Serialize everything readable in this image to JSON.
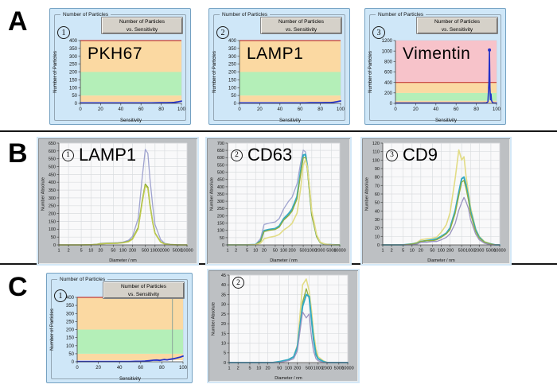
{
  "sections": [
    {
      "label": "A"
    },
    {
      "label": "B"
    },
    {
      "label": "C"
    }
  ],
  "particle_widget": {
    "groupbox_label": "Number of Particles",
    "button_line1": "Number of Particles",
    "button_line2": "vs. Sensitivity",
    "xlabel": "Sensitivity",
    "ylabel": "Number of Particles"
  },
  "colors": {
    "widget_blue": "#cfe7f8",
    "band_orange": "#fbd9a2",
    "band_green": "#b4efb8",
    "band_pink": "#f7c3ca",
    "threshold_red": "#c43c39",
    "trace_blue": "#2331c8",
    "widget_gray": "#bdc0c3"
  },
  "chart_data": [
    {
      "id": "A1",
      "badge": "1",
      "title": "PKH67",
      "type": "line",
      "style": "sensitivity",
      "xscale": "linear",
      "xlabel": "Sensitivity",
      "ylabel": "Number of Particles",
      "xlim": [
        0,
        100
      ],
      "ylim": [
        0,
        400
      ],
      "xticks": [
        0,
        20,
        40,
        60,
        80,
        100
      ],
      "yticks": [
        0,
        50,
        100,
        150,
        200,
        250,
        300,
        350,
        400
      ],
      "bands": [
        {
          "from": 10,
          "to": 50,
          "color": "#fbd9a2"
        },
        {
          "from": 50,
          "to": 200,
          "color": "#b4efb8"
        },
        {
          "from": 200,
          "to": 400,
          "color": "#fbd9a2"
        }
      ],
      "hline": {
        "y": 400,
        "color": "#c43c39"
      },
      "series": [
        {
          "name": "particle-count",
          "color": "#2331c8",
          "width": 1.8,
          "x": [
            0,
            10,
            20,
            30,
            40,
            50,
            60,
            70,
            80,
            85,
            90,
            93,
            96,
            100
          ],
          "y": [
            3,
            3,
            3,
            3,
            3,
            3,
            3,
            3,
            4,
            4,
            5,
            6,
            9,
            14
          ]
        }
      ]
    },
    {
      "id": "A2",
      "badge": "2",
      "title": "LAMP1",
      "type": "line",
      "style": "sensitivity",
      "xscale": "linear",
      "xlabel": "Sensitivity",
      "ylabel": "Number of Particles",
      "xlim": [
        0,
        100
      ],
      "ylim": [
        0,
        400
      ],
      "xticks": [
        0,
        20,
        40,
        60,
        80,
        100
      ],
      "yticks": [
        0,
        50,
        100,
        150,
        200,
        250,
        300,
        350,
        400
      ],
      "bands": [
        {
          "from": 10,
          "to": 50,
          "color": "#fbd9a2"
        },
        {
          "from": 50,
          "to": 200,
          "color": "#b4efb8"
        },
        {
          "from": 200,
          "to": 400,
          "color": "#fbd9a2"
        }
      ],
      "hline": {
        "y": 400,
        "color": "#c43c39"
      },
      "series": [
        {
          "name": "particle-count",
          "color": "#2331c8",
          "width": 1.8,
          "x": [
            0,
            10,
            20,
            30,
            40,
            50,
            60,
            70,
            80,
            85,
            90,
            93,
            96,
            100
          ],
          "y": [
            3,
            3,
            3,
            3,
            3,
            3,
            3,
            4,
            4,
            5,
            5,
            7,
            10,
            15
          ]
        }
      ]
    },
    {
      "id": "A3",
      "badge": "3",
      "title": "Vimentin",
      "type": "line",
      "style": "sensitivity",
      "xscale": "linear",
      "xlabel": "Sensitivity",
      "ylabel": "Number of Particles",
      "xlim": [
        0,
        100
      ],
      "ylim": [
        0,
        1200
      ],
      "xticks": [
        0,
        20,
        40,
        60,
        80,
        100
      ],
      "yticks": [
        0,
        200,
        400,
        600,
        800,
        1000,
        1200
      ],
      "bands": [
        {
          "from": 10,
          "to": 50,
          "color": "#fbd9a2"
        },
        {
          "from": 50,
          "to": 200,
          "color": "#b4efb8"
        },
        {
          "from": 200,
          "to": 400,
          "color": "#fbd9a2"
        },
        {
          "from": 400,
          "to": 1200,
          "color": "#f7c3ca"
        }
      ],
      "hline": {
        "y": 400,
        "color": "#c43c39"
      },
      "marker": {
        "x": 93,
        "y": 1020,
        "color": "#2331c8"
      },
      "series": [
        {
          "name": "particle-count",
          "color": "#2331c8",
          "width": 1.6,
          "x": [
            0,
            10,
            20,
            30,
            40,
            50,
            60,
            70,
            80,
            86,
            90,
            91.5,
            92.5,
            93,
            93.5,
            94,
            94.5,
            95,
            96,
            98,
            100
          ],
          "y": [
            6,
            6,
            6,
            6,
            6,
            6,
            6,
            6,
            7,
            8,
            10,
            30,
            420,
            1020,
            300,
            70,
            180,
            60,
            12,
            7,
            6
          ]
        }
      ]
    },
    {
      "id": "B1",
      "badge": "1",
      "title": "LAMP1",
      "type": "line",
      "style": "diameter",
      "xscale": "log",
      "xlabel": "Diameter / nm",
      "ylabel": "Number Absolute",
      "xlim": [
        1,
        10000
      ],
      "ylim": [
        0,
        650
      ],
      "xticks": [
        1,
        2,
        5,
        10,
        20,
        50,
        100,
        200,
        500,
        1000,
        2000,
        5000,
        10000
      ],
      "yticks": [
        0,
        50,
        100,
        150,
        200,
        250,
        300,
        350,
        400,
        450,
        500,
        550,
        600,
        650
      ],
      "x": [
        1,
        2,
        5,
        10,
        15,
        20,
        30,
        50,
        70,
        100,
        150,
        200,
        300,
        400,
        500,
        600,
        700,
        850,
        1000,
        1500,
        2000,
        3000,
        5000,
        7000,
        10000
      ],
      "series": [
        {
          "name": "sample-lavender",
          "color": "#9fa3cf",
          "width": 1.3,
          "y": [
            0,
            0,
            0,
            1,
            4,
            10,
            12,
            13,
            14,
            18,
            30,
            55,
            170,
            430,
            610,
            585,
            420,
            250,
            130,
            35,
            10,
            3,
            1,
            0,
            0
          ]
        },
        {
          "name": "sample-olive",
          "color": "#8fad3b",
          "width": 1.6,
          "y": [
            0,
            0,
            0,
            1,
            3,
            7,
            9,
            10,
            11,
            14,
            22,
            40,
            110,
            280,
            388,
            368,
            255,
            145,
            75,
            20,
            6,
            2,
            0,
            0,
            0
          ]
        },
        {
          "name": "sample-yellow-green",
          "color": "#c2cc52",
          "width": 1.3,
          "y": [
            0,
            0,
            0,
            1,
            3,
            6,
            8,
            9,
            10,
            13,
            20,
            36,
            102,
            268,
            378,
            360,
            248,
            140,
            72,
            18,
            5,
            1,
            0,
            0,
            0
          ]
        }
      ]
    },
    {
      "id": "B2",
      "badge": "2",
      "title": "CD63",
      "type": "line",
      "style": "diameter",
      "xscale": "log",
      "xlabel": "Diameter / nm",
      "ylabel": "Number Absolute",
      "xlim": [
        1,
        10000
      ],
      "ylim": [
        0,
        700
      ],
      "xticks": [
        1,
        2,
        5,
        10,
        20,
        50,
        100,
        200,
        500,
        1000,
        2000,
        5000,
        10000
      ],
      "yticks": [
        0,
        50,
        100,
        150,
        200,
        250,
        300,
        350,
        400,
        450,
        500,
        550,
        600,
        650,
        700
      ],
      "x": [
        1,
        2,
        5,
        10,
        15,
        20,
        30,
        50,
        70,
        100,
        150,
        200,
        300,
        400,
        500,
        600,
        700,
        850,
        1000,
        1500,
        2000,
        3000,
        5000,
        7000,
        10000
      ],
      "series": [
        {
          "name": "sample-lavender",
          "color": "#9fa3cf",
          "width": 1.3,
          "y": [
            0,
            0,
            0,
            3,
            45,
            140,
            150,
            158,
            182,
            248,
            300,
            328,
            420,
            560,
            652,
            640,
            555,
            375,
            225,
            68,
            20,
            5,
            1,
            0,
            0
          ]
        },
        {
          "name": "sample-teal",
          "color": "#33a9c2",
          "width": 2,
          "y": [
            0,
            0,
            0,
            2,
            28,
            98,
            106,
            112,
            130,
            180,
            215,
            246,
            332,
            502,
            618,
            622,
            538,
            358,
            212,
            60,
            17,
            4,
            1,
            0,
            0
          ]
        },
        {
          "name": "sample-olive",
          "color": "#8fad3b",
          "width": 1.3,
          "y": [
            0,
            0,
            0,
            2,
            25,
            92,
            100,
            106,
            122,
            170,
            202,
            232,
            316,
            482,
            598,
            602,
            518,
            342,
            202,
            55,
            15,
            4,
            1,
            0,
            0
          ]
        },
        {
          "name": "sample-light-yellow",
          "color": "#e2dc85",
          "width": 1.6,
          "y": [
            0,
            0,
            0,
            1,
            12,
            42,
            52,
            60,
            72,
            102,
            126,
            148,
            218,
            382,
            548,
            588,
            538,
            382,
            235,
            70,
            19,
            5,
            1,
            0,
            0
          ]
        }
      ]
    },
    {
      "id": "B3",
      "badge": "3",
      "title": "CD9",
      "type": "line",
      "style": "diameter",
      "xscale": "log",
      "xlabel": "Diameter / nm",
      "ylabel": "Number Absolute",
      "xlim": [
        1,
        10000
      ],
      "ylim": [
        0,
        120
      ],
      "xticks": [
        1,
        2,
        5,
        10,
        20,
        50,
        100,
        200,
        500,
        1000,
        2000,
        5000,
        10000
      ],
      "yticks": [
        0,
        10,
        20,
        30,
        40,
        50,
        60,
        70,
        80,
        90,
        100,
        110,
        120
      ],
      "x": [
        1,
        2,
        5,
        10,
        15,
        20,
        30,
        50,
        70,
        100,
        150,
        200,
        300,
        400,
        500,
        600,
        700,
        850,
        1000,
        1500,
        2000,
        3000,
        5000,
        7000,
        10000
      ],
      "series": [
        {
          "name": "sample-light-yellow",
          "color": "#e2dc85",
          "width": 1.6,
          "y": [
            0,
            0,
            0,
            1,
            3,
            6,
            7,
            8,
            9,
            15,
            24,
            38,
            78,
            112,
            100,
            104,
            82,
            62,
            45,
            19,
            10,
            4,
            1,
            0,
            0
          ]
        },
        {
          "name": "sample-teal",
          "color": "#33a9c2",
          "width": 2,
          "y": [
            0,
            0,
            0,
            1,
            2,
            4,
            5,
            6,
            7,
            10,
            14,
            20,
            40,
            62,
            78,
            80,
            71,
            56,
            40,
            18,
            9,
            3,
            1,
            0,
            0
          ]
        },
        {
          "name": "sample-olive",
          "color": "#8fad3b",
          "width": 1.3,
          "y": [
            0,
            0,
            0,
            1,
            2,
            4,
            5,
            5,
            6,
            9,
            13,
            18,
            37,
            58,
            74,
            76,
            67,
            53,
            37,
            16,
            8,
            3,
            1,
            0,
            0
          ]
        },
        {
          "name": "sample-lavender",
          "color": "#9b94c0",
          "width": 1.3,
          "y": [
            0,
            0,
            0,
            0,
            1,
            3,
            3,
            4,
            4,
            6,
            9,
            13,
            25,
            41,
            50,
            56,
            51,
            43,
            30,
            13,
            6,
            2,
            0,
            0,
            0
          ]
        }
      ]
    },
    {
      "id": "C1",
      "badge": "1",
      "title": "",
      "type": "line",
      "style": "sensitivity",
      "xscale": "linear",
      "xlabel": "Sensitivity",
      "ylabel": "Number of Particles",
      "xlim": [
        0,
        100
      ],
      "ylim": [
        0,
        400
      ],
      "xticks": [
        0,
        20,
        40,
        60,
        80,
        100
      ],
      "yticks": [
        0,
        50,
        100,
        150,
        200,
        250,
        300,
        350,
        400
      ],
      "bands": [
        {
          "from": 10,
          "to": 50,
          "color": "#fbd9a2"
        },
        {
          "from": 50,
          "to": 200,
          "color": "#b4efb8"
        },
        {
          "from": 200,
          "to": 400,
          "color": "#fbd9a2"
        }
      ],
      "hline": {
        "y": 400,
        "color": "#c43c39"
      },
      "vline": {
        "x": 90,
        "color": "#8ba39a"
      },
      "series": [
        {
          "name": "particle-count",
          "color": "#2331c8",
          "width": 1.8,
          "x": [
            0,
            10,
            20,
            30,
            40,
            50,
            55,
            60,
            64,
            68,
            72,
            75,
            78,
            82,
            85,
            88,
            91,
            94,
            97,
            100
          ],
          "y": [
            2,
            2,
            2,
            2,
            2,
            2,
            3,
            3,
            4,
            7,
            10,
            11,
            9,
            14,
            12,
            16,
            19,
            23,
            28,
            35
          ]
        }
      ]
    },
    {
      "id": "C2",
      "badge": "2",
      "title": "",
      "type": "line",
      "style": "diameter",
      "xscale": "log",
      "xlabel": "Diameter / nm",
      "ylabel": "Number Absolute",
      "xlim": [
        1,
        10000
      ],
      "ylim": [
        0,
        45
      ],
      "xticks": [
        1,
        2,
        5,
        10,
        20,
        50,
        100,
        200,
        500,
        1000,
        2000,
        5000,
        10000
      ],
      "yticks": [
        0,
        5,
        10,
        15,
        20,
        25,
        30,
        35,
        40,
        45
      ],
      "x": [
        1,
        2,
        5,
        10,
        15,
        20,
        30,
        50,
        70,
        100,
        150,
        200,
        300,
        400,
        500,
        600,
        700,
        850,
        1000,
        1500,
        2000,
        3000,
        5000,
        7000,
        10000
      ],
      "series": [
        {
          "name": "sample-light-yellow",
          "color": "#e2dc85",
          "width": 1.6,
          "y": [
            0,
            0,
            0,
            0,
            0,
            0,
            0,
            0.5,
            1,
            1.5,
            3,
            9,
            40,
            43,
            37,
            27,
            16,
            7,
            3,
            1,
            0,
            0,
            0,
            0,
            0
          ]
        },
        {
          "name": "sample-olive",
          "color": "#8fad3b",
          "width": 1.3,
          "y": [
            0,
            0,
            0,
            0,
            0,
            0,
            0,
            0.5,
            1,
            1.5,
            3,
            8,
            31,
            38,
            33,
            23,
            13,
            5,
            2,
            0.5,
            0,
            0,
            0,
            0,
            0
          ]
        },
        {
          "name": "sample-teal",
          "color": "#33a9c2",
          "width": 2,
          "y": [
            0,
            0,
            0,
            0,
            0,
            0,
            0,
            0.5,
            1,
            1.5,
            3,
            8,
            29,
            35,
            34,
            22,
            12,
            4,
            2,
            0.5,
            0,
            0,
            0,
            0,
            0
          ]
        },
        {
          "name": "sample-lavender",
          "color": "#9b94c0",
          "width": 1.3,
          "y": [
            0,
            0,
            0,
            0,
            0,
            0,
            0,
            0,
            0.5,
            1,
            2,
            6,
            26,
            23,
            25,
            13,
            6,
            2,
            1,
            0,
            0,
            0,
            0,
            0,
            0
          ]
        }
      ]
    }
  ]
}
